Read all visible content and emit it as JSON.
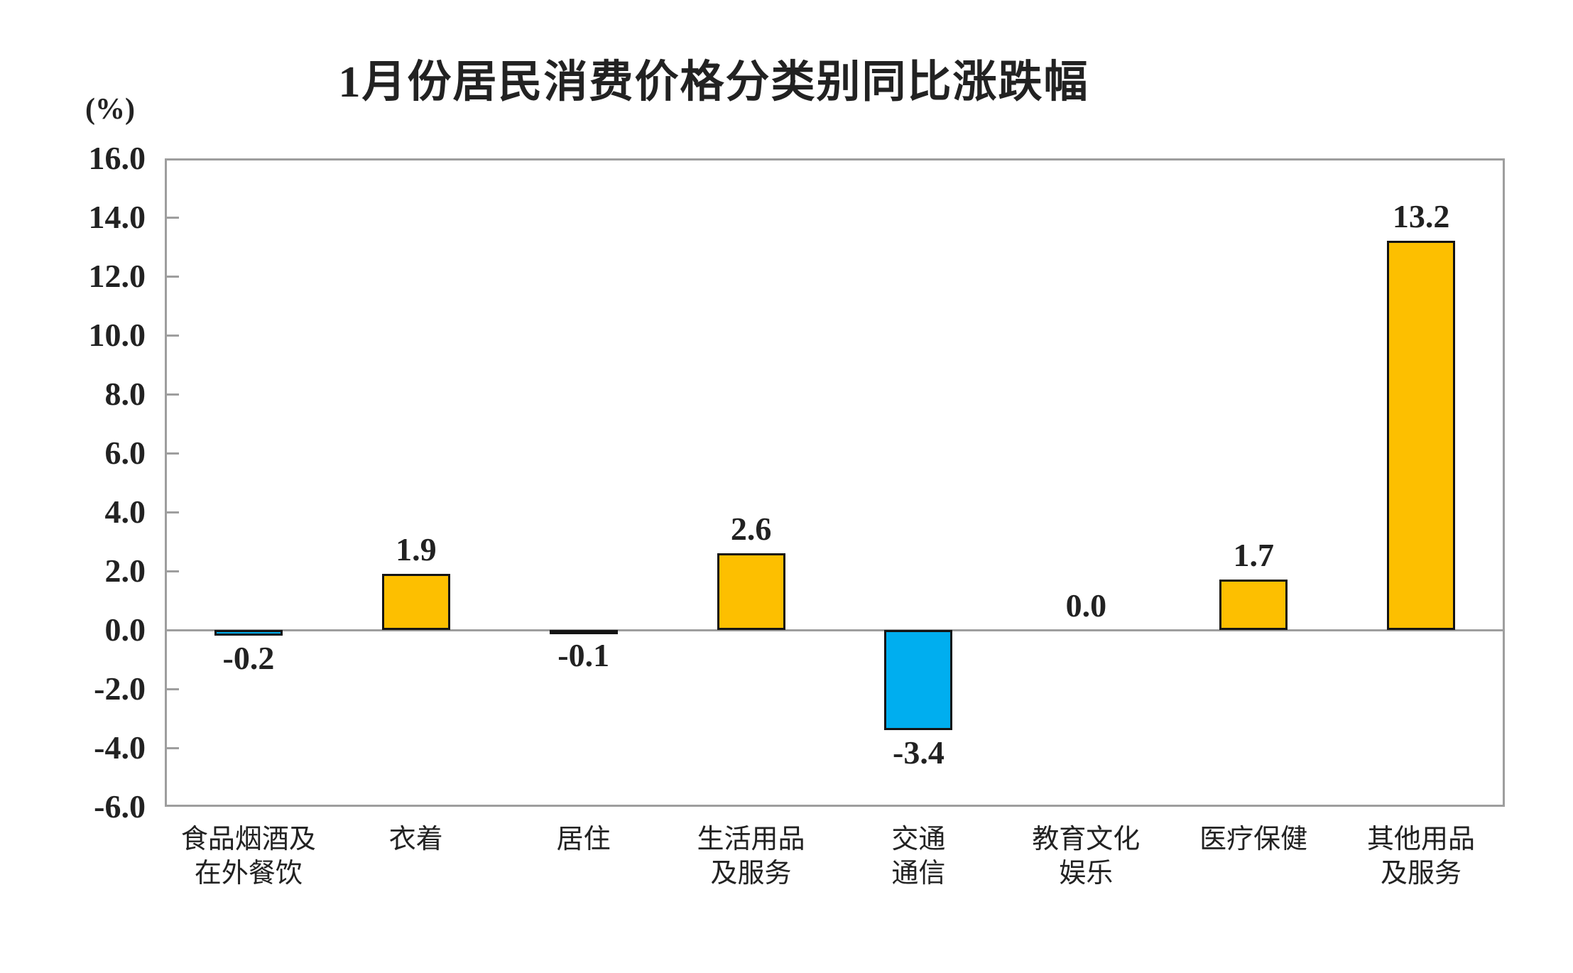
{
  "chart_data": {
    "type": "bar",
    "title": "1月份居民消费价格分类别同比涨跌幅",
    "ylabel": "(%)",
    "categories": [
      "食品烟酒及\n在外餐饮",
      "衣着",
      "居住",
      "生活用品\n及服务",
      "交通\n通信",
      "教育文化\n娱乐",
      "医疗保健",
      "其他用品\n及服务"
    ],
    "values": [
      -0.2,
      1.9,
      -0.1,
      2.6,
      -3.4,
      0.0,
      1.7,
      13.2
    ],
    "value_labels": [
      "-0.2",
      "1.9",
      "-0.1",
      "2.6",
      "-3.4",
      "0.0",
      "1.7",
      "13.2"
    ],
    "ylim": [
      -6.0,
      16.0
    ],
    "ytick_step": 2.0,
    "ytick_labels": [
      "16.0",
      "14.0",
      "12.0",
      "10.0",
      "8.0",
      "6.0",
      "4.0",
      "2.0",
      "0.0",
      "-2.0",
      "-4.0",
      "-6.0"
    ],
    "grid": false,
    "legend": null,
    "colors": {
      "positive_bar": "#FDBF00",
      "negative_bar": "#00AEEF",
      "bar_border": "#141414",
      "axis_frame": "#9E9E9E",
      "text": "#222222"
    }
  }
}
